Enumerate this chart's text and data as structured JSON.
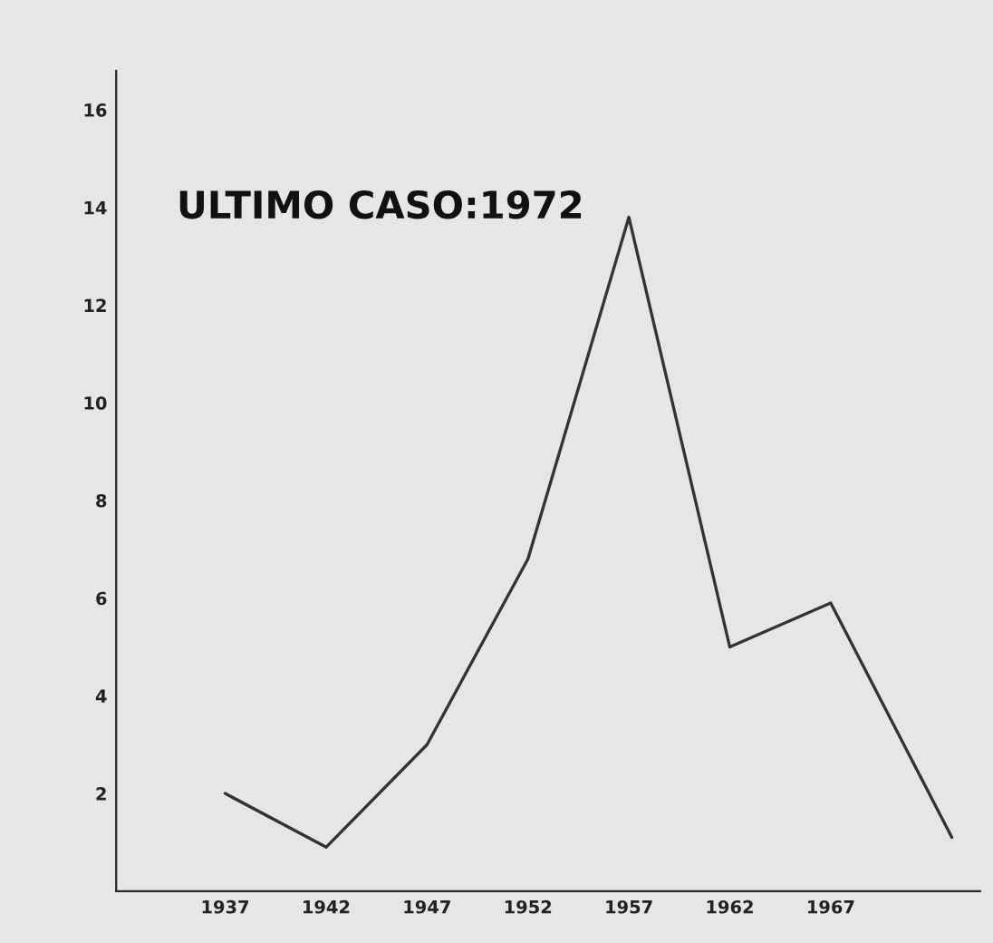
{
  "chart_data": {
    "type": "line",
    "x": [
      1937,
      1942,
      1947,
      1952,
      1957,
      1962,
      1967,
      1973
    ],
    "series": [
      {
        "color": "#333333",
        "values": [
          2,
          0.9,
          3,
          6.8,
          13.8,
          5,
          5.9,
          1.1
        ]
      }
    ],
    "xlim": [
      1931.6,
      1974.4
    ],
    "xticks": [
      1937,
      1942,
      1947,
      1952,
      1957,
      1962,
      1967
    ],
    "ylim": [
      0,
      16.8
    ],
    "yticks": [
      2,
      4,
      6,
      8,
      10,
      12,
      14,
      16
    ],
    "annotations": [
      "ULTIMO CASO:1972"
    ],
    "grid": false,
    "legend": false,
    "marker": "none",
    "line_style": "solid"
  }
}
